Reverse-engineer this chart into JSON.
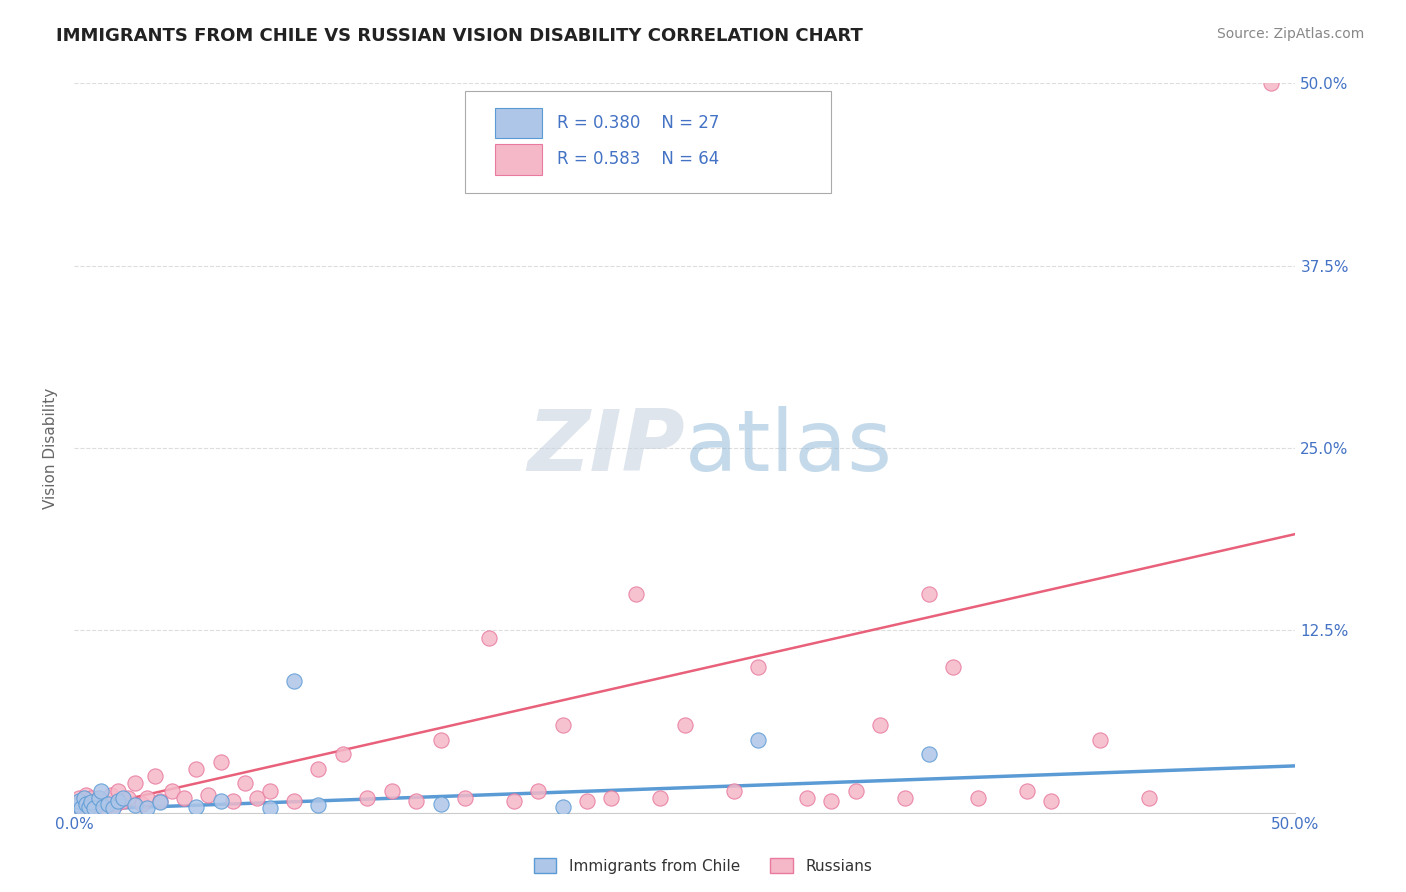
{
  "title": "IMMIGRANTS FROM CHILE VS RUSSIAN VISION DISABILITY CORRELATION CHART",
  "source": "Source: ZipAtlas.com",
  "ylabel": "Vision Disability",
  "xlim": [
    0.0,
    0.5
  ],
  "ylim": [
    0.0,
    0.5
  ],
  "chile_color": "#aec6e8",
  "russia_color": "#f5b8c8",
  "chile_edge_color": "#5b9bd5",
  "russia_edge_color": "#e87a9f",
  "chile_line_color": "#5b9bd5",
  "russia_line_color": "#e8607a",
  "legend_text_color": "#4472c4",
  "chile_R": 0.38,
  "chile_N": 27,
  "russia_R": 0.583,
  "russia_N": 64,
  "watermark_color": "#d8e4f0",
  "title_color": "#222222",
  "source_color": "#888888",
  "grid_color": "#dddddd",
  "axis_label_color": "#666666",
  "tick_label_color": "#4472c4",
  "chile_x": [
    0.001,
    0.002,
    0.003,
    0.004,
    0.005,
    0.006,
    0.007,
    0.008,
    0.01,
    0.011,
    0.012,
    0.014,
    0.016,
    0.018,
    0.02,
    0.025,
    0.03,
    0.035,
    0.05,
    0.06,
    0.08,
    0.09,
    0.1,
    0.15,
    0.2,
    0.28,
    0.35
  ],
  "chile_y": [
    0.005,
    0.008,
    0.003,
    0.01,
    0.006,
    0.004,
    0.007,
    0.003,
    0.01,
    0.015,
    0.004,
    0.006,
    0.003,
    0.008,
    0.01,
    0.005,
    0.003,
    0.007,
    0.004,
    0.008,
    0.003,
    0.09,
    0.005,
    0.006,
    0.004,
    0.05,
    0.04
  ],
  "russia_x": [
    0.001,
    0.002,
    0.003,
    0.004,
    0.005,
    0.006,
    0.007,
    0.008,
    0.009,
    0.01,
    0.011,
    0.012,
    0.013,
    0.015,
    0.017,
    0.018,
    0.02,
    0.022,
    0.025,
    0.028,
    0.03,
    0.033,
    0.035,
    0.04,
    0.045,
    0.05,
    0.055,
    0.06,
    0.065,
    0.07,
    0.075,
    0.08,
    0.09,
    0.1,
    0.11,
    0.12,
    0.13,
    0.14,
    0.15,
    0.16,
    0.17,
    0.18,
    0.19,
    0.2,
    0.21,
    0.22,
    0.23,
    0.24,
    0.25,
    0.27,
    0.28,
    0.3,
    0.31,
    0.32,
    0.33,
    0.34,
    0.35,
    0.36,
    0.37,
    0.39,
    0.4,
    0.42,
    0.44,
    0.49
  ],
  "russia_y": [
    0.005,
    0.01,
    0.008,
    0.003,
    0.012,
    0.006,
    0.01,
    0.004,
    0.007,
    0.01,
    0.006,
    0.008,
    0.004,
    0.012,
    0.006,
    0.015,
    0.008,
    0.01,
    0.02,
    0.006,
    0.01,
    0.025,
    0.008,
    0.015,
    0.01,
    0.03,
    0.012,
    0.035,
    0.008,
    0.02,
    0.01,
    0.015,
    0.008,
    0.03,
    0.04,
    0.01,
    0.015,
    0.008,
    0.05,
    0.01,
    0.12,
    0.008,
    0.015,
    0.06,
    0.008,
    0.01,
    0.15,
    0.01,
    0.06,
    0.015,
    0.1,
    0.01,
    0.008,
    0.015,
    0.06,
    0.01,
    0.15,
    0.1,
    0.01,
    0.015,
    0.008,
    0.05,
    0.01,
    0.5
  ]
}
